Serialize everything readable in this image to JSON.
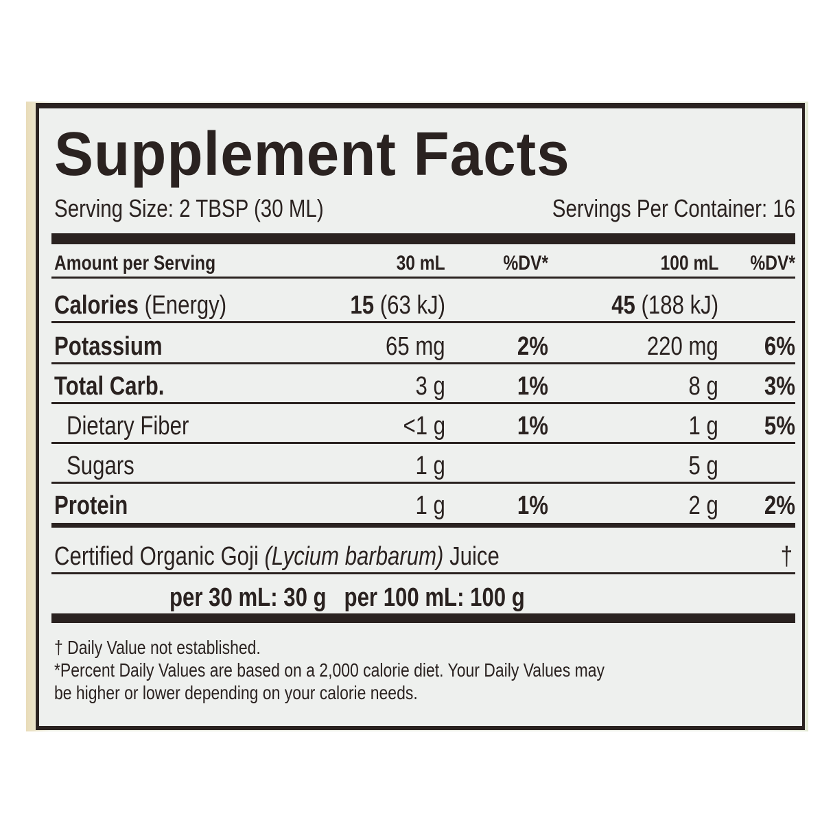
{
  "title": "Supplement Facts",
  "serving_size": "Serving Size: 2 TBSP (30 ML)",
  "servings_per_container": "Servings Per Container: 16",
  "header": {
    "amount": "Amount per Serving",
    "col1": "30 mL",
    "dv1": "%DV*",
    "col2": "100 mL",
    "dv2": "%DV*"
  },
  "rows": [
    {
      "name": "Calories",
      "name_extra": " (Energy)",
      "v1_bold": "15",
      "v1": " (63 kJ)",
      "d1": "",
      "v2_bold": "45",
      "v2": " (188 kJ)",
      "d2": ""
    },
    {
      "name": "Potassium",
      "v1": "65 mg",
      "d1": "2%",
      "v2": "220 mg",
      "d2": "6%"
    },
    {
      "name": "Total Carb.",
      "v1": "3 g",
      "d1": "1%",
      "v2": "8 g",
      "d2": "3%"
    },
    {
      "name": "Dietary Fiber",
      "v1": "<1 g",
      "d1": "1%",
      "v2": "1 g",
      "d2": "5%"
    },
    {
      "name": "Sugars",
      "v1": "1 g",
      "d1": "",
      "v2": "5 g",
      "d2": ""
    },
    {
      "name": "Protein",
      "v1": "1 g",
      "d1": "1%",
      "v2": "2 g",
      "d2": "2%"
    }
  ],
  "ingredient": {
    "pre": "Certified Organic Goji ",
    "latin": "(Lycium barbarum)",
    "post": " Juice",
    "mark": "†",
    "amounts": "per 30 mL: 30 g   per 100 mL: 100 g"
  },
  "footnotes": [
    "† Daily Value not established.",
    "*Percent Daily Values are based on a 2,000 calorie diet. Your Daily Values may",
    "be higher or lower depending on your calorie needs."
  ]
}
